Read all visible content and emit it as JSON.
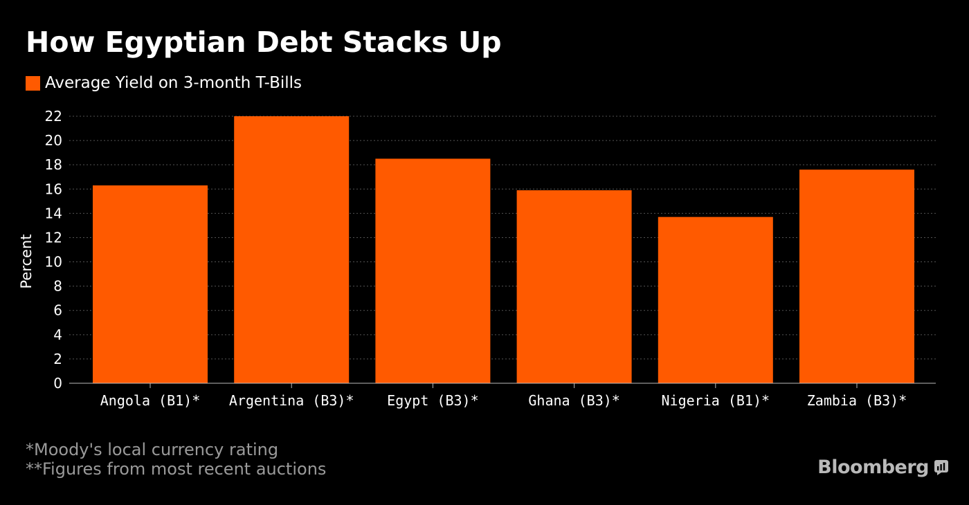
{
  "title": "How Egyptian Debt Stacks Up",
  "footnotes": [
    "*Moody's local currency rating",
    "**Figures from most recent auctions"
  ],
  "brand": "Bloomberg",
  "brand_icon": "bloomberg-terminal-icon",
  "colors": {
    "background": "#000000",
    "bar": "#ff5a00",
    "text": "#ffffff",
    "grid": "#555555",
    "footnote": "#9a9a9a"
  },
  "chart_data": {
    "type": "bar",
    "title": "How Egyptian Debt Stacks Up",
    "xlabel": "",
    "ylabel": "Percent",
    "ylim": [
      0,
      22
    ],
    "yticks": [
      0,
      2,
      4,
      6,
      8,
      10,
      12,
      14,
      16,
      18,
      20,
      22
    ],
    "grid": true,
    "legend": "top-left",
    "categories": [
      "Angola (B1)*",
      "Argentina (B3)*",
      "Egypt (B3)*",
      "Ghana (B3)*",
      "Nigeria (B1)*",
      "Zambia (B3)*"
    ],
    "series": [
      {
        "name": "Average Yield on 3-month T-Bills",
        "values": [
          16.3,
          22.0,
          18.5,
          15.9,
          13.7,
          17.6
        ]
      }
    ]
  }
}
